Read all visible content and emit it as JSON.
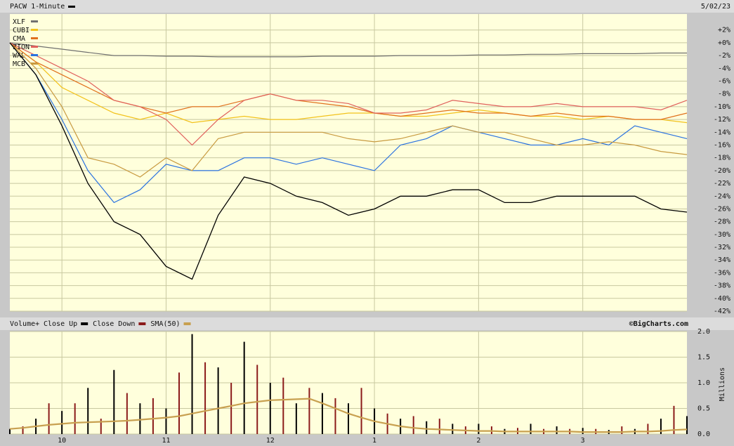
{
  "chart_data": [
    {
      "type": "line",
      "title": "PACW 1-Minute",
      "date": "5/02/23",
      "x": [
        9.5,
        9.75,
        10,
        10.25,
        10.5,
        10.75,
        11,
        11.25,
        11.5,
        11.75,
        12,
        12.25,
        12.5,
        12.75,
        13,
        13.25,
        13.5,
        13.75,
        14,
        14.25,
        14.5,
        14.75,
        15,
        15.25,
        15.5,
        15.75,
        16
      ],
      "main_series": {
        "color": "#000000",
        "values": [
          0,
          -5,
          -13,
          -22,
          -28,
          -30,
          -35,
          -37,
          -27,
          -21,
          -22,
          -24,
          -25,
          -27,
          -26,
          -24,
          -24,
          -23,
          -23,
          -25,
          -25,
          -24,
          -24,
          -24,
          -24,
          -26,
          -26.5
        ]
      },
      "series": [
        {
          "name": "XLF",
          "color": "#707070",
          "values": [
            0,
            -0.5,
            -1,
            -1.5,
            -2,
            -2,
            -2.1,
            -2.1,
            -2.2,
            -2.2,
            -2.2,
            -2.2,
            -2.1,
            -2.1,
            -2.1,
            -2,
            -2,
            -2,
            -1.9,
            -1.9,
            -1.8,
            -1.8,
            -1.7,
            -1.7,
            -1.7,
            -1.6,
            -1.6
          ]
        },
        {
          "name": "CUBI",
          "color": "#f2c21c",
          "values": [
            0,
            -3,
            -7,
            -9,
            -11,
            -12,
            -11,
            -12.5,
            -12,
            -11.5,
            -12,
            -12,
            -11.5,
            -11,
            -11,
            -11.5,
            -11.5,
            -11,
            -10.5,
            -11,
            -11.5,
            -11.5,
            -12,
            -11.5,
            -12,
            -12,
            -12.5
          ]
        },
        {
          "name": "CMA",
          "color": "#e0701c",
          "values": [
            0,
            -3,
            -5,
            -7,
            -9,
            -10,
            -11,
            -10,
            -10,
            -9,
            -8,
            -9,
            -9.5,
            -10,
            -11,
            -11.5,
            -11,
            -10.5,
            -11,
            -11,
            -11.5,
            -11,
            -11.5,
            -11.5,
            -12,
            -12,
            -11
          ]
        },
        {
          "name": "ZION",
          "color": "#e0605c",
          "values": [
            0,
            -2,
            -4,
            -6,
            -9,
            -10,
            -12,
            -16,
            -12,
            -9,
            -8,
            -9,
            -9,
            -9.5,
            -11,
            -11,
            -10.5,
            -9,
            -9.5,
            -10,
            -10,
            -9.5,
            -10,
            -10,
            -10,
            -10.5,
            -9
          ]
        },
        {
          "name": "WAL",
          "color": "#2a72e0",
          "values": [
            0,
            -5,
            -12,
            -20,
            -25,
            -23,
            -19,
            -20,
            -20,
            -18,
            -18,
            -19,
            -18,
            -19,
            -20,
            -16,
            -15,
            -13,
            -14,
            -15,
            -16,
            -16,
            -15,
            -16,
            -13,
            -14,
            -15
          ]
        },
        {
          "name": "MCB",
          "color": "#c89a40",
          "values": [
            0,
            -4,
            -10,
            -18,
            -19,
            -21,
            -18,
            -20,
            -15,
            -14,
            -14,
            -14,
            -14,
            -15,
            -15.5,
            -15,
            -14,
            -13,
            -14,
            -14,
            -15,
            -16,
            -16,
            -15.5,
            -16,
            -17,
            -17.5
          ]
        }
      ],
      "xlim": [
        9.5,
        16
      ],
      "ylim": [
        -42,
        4.5
      ],
      "yticks": [
        {
          "value": 2,
          "label": "+2%"
        },
        {
          "value": 0,
          "label": "+0%"
        },
        {
          "value": -2,
          "label": "-2%"
        },
        {
          "value": -4,
          "label": "-4%"
        },
        {
          "value": -6,
          "label": "-6%"
        },
        {
          "value": -8,
          "label": "-8%"
        },
        {
          "value": -10,
          "label": "-10%"
        },
        {
          "value": -12,
          "label": "-12%"
        },
        {
          "value": -14,
          "label": "-14%"
        },
        {
          "value": -16,
          "label": "-16%"
        },
        {
          "value": -18,
          "label": "-18%"
        },
        {
          "value": -20,
          "label": "-20%"
        },
        {
          "value": -22,
          "label": "-22%"
        },
        {
          "value": -24,
          "label": "-24%"
        },
        {
          "value": -26,
          "label": "-26%"
        },
        {
          "value": -28,
          "label": "-28%"
        },
        {
          "value": -30,
          "label": "-30%"
        },
        {
          "value": -32,
          "label": "-32%"
        },
        {
          "value": -34,
          "label": "-34%"
        },
        {
          "value": -36,
          "label": "-36%"
        },
        {
          "value": -38,
          "label": "-38%"
        },
        {
          "value": -40,
          "label": "-40%"
        },
        {
          "value": -42,
          "label": "-42%"
        }
      ],
      "grid": true
    },
    {
      "type": "bar",
      "title": "Volume+",
      "source": "©BigCharts.com",
      "ylabel": "Millions",
      "x": [
        9.5,
        9.625,
        9.75,
        9.875,
        10,
        10.125,
        10.25,
        10.375,
        10.5,
        10.625,
        10.75,
        10.875,
        11,
        11.125,
        11.25,
        11.375,
        11.5,
        11.625,
        11.75,
        11.875,
        12,
        12.125,
        12.25,
        12.375,
        12.5,
        12.625,
        12.75,
        12.875,
        13,
        13.125,
        13.25,
        13.375,
        13.5,
        13.625,
        13.75,
        13.875,
        14,
        14.125,
        14.25,
        14.375,
        14.5,
        14.625,
        14.75,
        14.875,
        15,
        15.125,
        15.25,
        15.375,
        15.5,
        15.625,
        15.75,
        15.875,
        16
      ],
      "series": [
        {
          "name": "Close Up",
          "color": "#000000",
          "values": [
            0.1,
            null,
            0.3,
            null,
            0.45,
            null,
            0.9,
            null,
            1.25,
            null,
            0.6,
            null,
            0.5,
            null,
            1.95,
            null,
            1.3,
            null,
            1.8,
            null,
            1.0,
            null,
            0.6,
            null,
            0.8,
            null,
            0.6,
            null,
            0.5,
            null,
            0.3,
            null,
            0.25,
            null,
            0.2,
            null,
            0.2,
            null,
            0.1,
            null,
            0.2,
            null,
            0.15,
            null,
            0.12,
            null,
            0.08,
            null,
            0.1,
            null,
            0.3,
            null,
            0.35
          ]
        },
        {
          "name": "Close Down",
          "color": "#8b1a1a",
          "values": [
            null,
            0.15,
            null,
            0.6,
            null,
            0.6,
            null,
            0.3,
            null,
            0.8,
            null,
            0.7,
            null,
            1.2,
            null,
            1.4,
            null,
            1.0,
            null,
            1.35,
            null,
            1.1,
            null,
            0.9,
            null,
            0.7,
            null,
            0.9,
            null,
            0.4,
            null,
            0.35,
            null,
            0.3,
            null,
            0.15,
            null,
            0.15,
            null,
            0.12,
            null,
            0.1,
            null,
            0.1,
            null,
            0.1,
            null,
            0.15,
            null,
            0.2,
            null,
            0.55,
            null
          ]
        },
        {
          "name": "SMA(50)",
          "type": "line",
          "color": "#c8a050",
          "values": [
            0.1,
            0.12,
            0.15,
            0.18,
            0.2,
            0.22,
            0.23,
            0.24,
            0.25,
            0.26,
            0.28,
            0.3,
            0.32,
            0.35,
            0.4,
            0.45,
            0.5,
            0.55,
            0.6,
            0.63,
            0.66,
            0.67,
            0.68,
            0.69,
            0.6,
            0.5,
            0.4,
            0.32,
            0.25,
            0.2,
            0.15,
            0.12,
            0.1,
            0.09,
            0.08,
            0.07,
            0.06,
            0.06,
            0.05,
            0.05,
            0.05,
            0.05,
            0.05,
            0.05,
            0.04,
            0.04,
            0.04,
            0.04,
            0.05,
            0.05,
            0.06,
            0.08,
            0.09
          ]
        }
      ],
      "xlim": [
        9.5,
        16
      ],
      "xticks": [
        10,
        11,
        12,
        {
          "value": 13,
          "label": "1"
        },
        {
          "value": 14,
          "label": "2"
        },
        {
          "value": 15,
          "label": "3"
        }
      ],
      "ylim": [
        0,
        2
      ],
      "yticks": [
        {
          "value": 0,
          "label": "0.0"
        },
        {
          "value": 0.5,
          "label": "0.5"
        },
        {
          "value": 1,
          "label": "1.0"
        },
        {
          "value": 1.5,
          "label": "1.5"
        },
        {
          "value": 2,
          "label": "2.0"
        }
      ],
      "grid": true
    }
  ]
}
